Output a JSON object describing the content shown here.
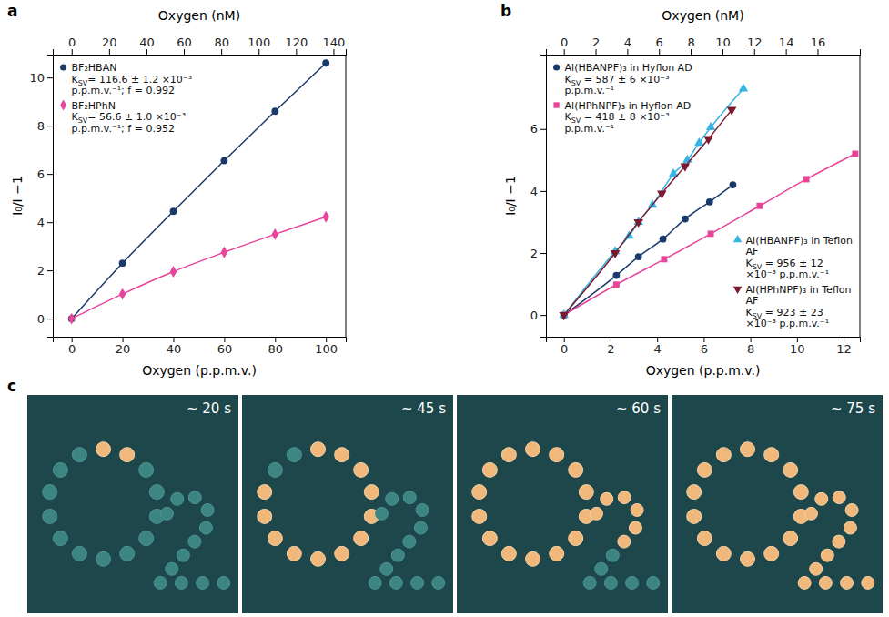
{
  "chart_data": [
    {
      "panel": "a",
      "type": "line",
      "x_label": "Oxygen (p.p.m.v.)",
      "x2_label": "Oxygen (nM)",
      "y_label": "I₀/I −1",
      "xlim": [
        -7.4,
        107.8
      ],
      "xticks": [
        0,
        20,
        40,
        60,
        80,
        100
      ],
      "x2lim": [
        -10.1,
        146.6
      ],
      "x2ticks": [
        0,
        20,
        40,
        60,
        80,
        100,
        120,
        140
      ],
      "ylim": [
        -0.75,
        10.95
      ],
      "yticks": [
        0,
        2,
        4,
        6,
        8,
        10
      ],
      "legend": "upper left",
      "series": [
        {
          "name": "BF₂HBAN",
          "annotation": "KSV= 116.6 ± 1.2 ×10⁻³ p.p.m.v.⁻¹; f = 0.992",
          "color": "#1b3a6b",
          "marker": "circle",
          "x": [
            0,
            20,
            40,
            60,
            80,
            100
          ],
          "values": [
            0,
            2.3,
            4.45,
            6.55,
            8.6,
            10.6
          ]
        },
        {
          "name": "BF₂HPhN",
          "annotation": "KSV= 56.6 ± 1.0 ×10⁻³ p.p.m.v.⁻¹; f = 0.952",
          "color": "#e8449a",
          "marker": "diamond",
          "x": [
            0,
            20,
            40,
            60,
            80,
            100
          ],
          "values": [
            0,
            1.02,
            1.95,
            2.75,
            3.5,
            4.22
          ]
        }
      ]
    },
    {
      "panel": "b",
      "type": "line",
      "x_label": "Oxygen (p.p.m.v.)",
      "x2_label": "Oxygen (nM)",
      "y_label": "I₀/I −1",
      "xlim": [
        -0.77,
        12.7
      ],
      "xticks": [
        0,
        2,
        4,
        6,
        8,
        10,
        12
      ],
      "x2lim": [
        -1.13,
        18.67
      ],
      "x2ticks": [
        0,
        2,
        4,
        6,
        8,
        10,
        12,
        14,
        16
      ],
      "ylim": [
        -0.7,
        8.4
      ],
      "yticks": [
        0,
        2,
        4,
        6
      ],
      "legend": "upper left",
      "series": [
        {
          "name": "Al(HBANPF)₃ in Hyflon AD",
          "annotation": "KSV = 587 ± 6 ×10⁻³ p.p.m.v.⁻¹",
          "color": "#1b3a6b",
          "marker": "circle",
          "x": [
            0,
            2.25,
            3.2,
            4.25,
            5.2,
            6.25,
            7.25
          ],
          "values": [
            0,
            1.28,
            1.88,
            2.45,
            3.1,
            3.65,
            4.2
          ]
        },
        {
          "name": "Al(HPhNPF)₃ in Hyflon AD",
          "annotation": "KSV = 418 ± 8 ×10⁻³ p.p.m.v.⁻¹",
          "color": "#e8449a",
          "marker": "square",
          "x": [
            0,
            2.25,
            4.3,
            6.3,
            8.4,
            10.4,
            12.5
          ],
          "values": [
            0,
            0.98,
            1.8,
            2.62,
            3.52,
            4.38,
            5.2
          ]
        },
        {
          "name": "Al(HBANPF)₃ in Teflon AF",
          "annotation": "KSV = 956 ± 12 ×10⁻³ p.p.m.v.⁻¹",
          "color": "#35b5e5",
          "marker": "triangle-up",
          "legend": "lower right",
          "x": [
            0,
            2.2,
            2.8,
            3.2,
            3.8,
            4.7,
            5.3,
            5.8,
            6.3,
            7.7
          ],
          "values": [
            0,
            2.05,
            2.55,
            3.0,
            3.55,
            4.55,
            5.0,
            5.55,
            6.05,
            7.3
          ]
        },
        {
          "name": "Al(HPhNPF)₃ in Teflon AF",
          "annotation": "KSV = 923 ± 23 ×10⁻³ p.p.m.v.⁻¹",
          "color": "#7b1a2e",
          "marker": "triangle-down",
          "legend": "lower right",
          "x": [
            0,
            2.2,
            3.2,
            4.2,
            5.2,
            6.2,
            7.2
          ],
          "values": [
            0,
            2.0,
            3.0,
            3.92,
            4.8,
            5.68,
            6.62
          ]
        }
      ]
    }
  ],
  "image_panel": {
    "panel": "c",
    "frames": [
      {
        "time": "~ 20 s",
        "lit_spots": 2
      },
      {
        "time": "~ 45 s",
        "lit_spots": 12
      },
      {
        "time": "~ 60 s",
        "lit_spots": 20
      },
      {
        "time": "~ 75 s",
        "lit_spots": 26
      }
    ]
  }
}
